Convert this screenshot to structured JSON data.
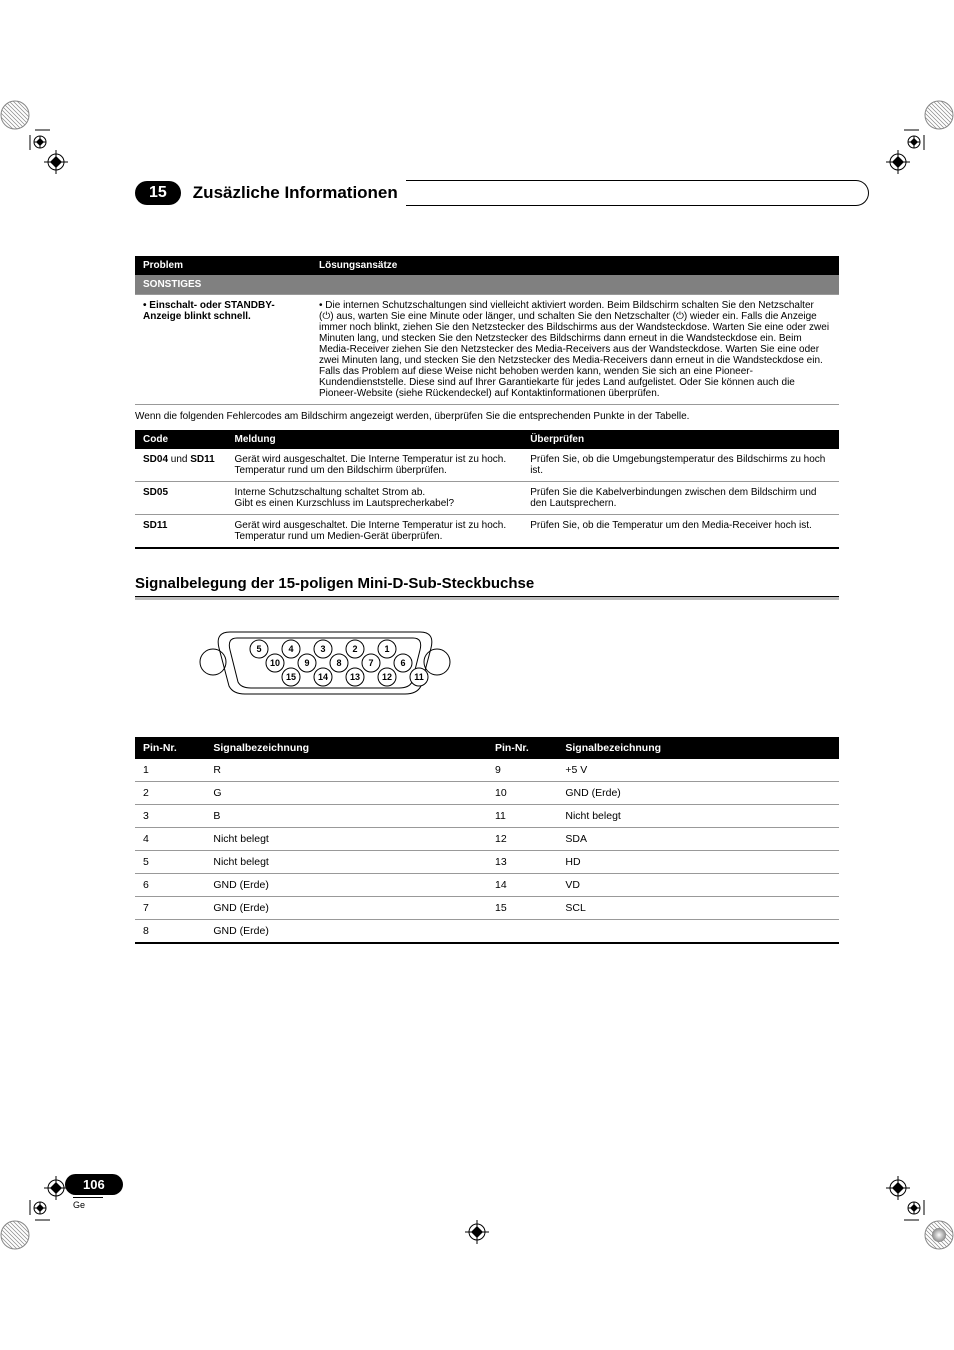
{
  "chapter": {
    "number": "15",
    "title": "Zusäzliche Informationen"
  },
  "table1": {
    "headers": [
      "Problem",
      "Lösungsansätze"
    ],
    "subheader": "SONSTIGES",
    "row": {
      "problem": "• Einschalt- oder STANDBY-Anzeige blinkt schnell.",
      "solution": "• Die internen Schutzschaltungen sind vielleicht aktiviert worden. Beim Bildschirm schalten Sie den Netzschalter (⏻) aus, warten Sie eine Minute oder länger, und schalten Sie den Netzschalter (⏻) wieder ein. Falls die Anzeige immer noch blinkt, ziehen Sie den Netzstecker des Bildschirms aus der Wandsteckdose. Warten Sie eine oder zwei Minuten lang, und stecken Sie den Netzstecker des Bildschirms dann erneut in die Wandsteckdose ein. Beim Media-Receiver ziehen Sie den Netzstecker des Media-Receivers aus der Wandsteckdose. Warten Sie eine oder zwei Minuten lang, und stecken Sie den Netzstecker des Media-Receivers dann erneut in die Wandsteckdose ein. Falls das Problem auf diese Weise nicht behoben werden kann, wenden Sie sich an eine Pioneer-Kundendienststelle. Diese sind auf Ihrer Garantiekarte für jedes Land aufgelistet. Oder Sie können auch die Pioneer-Website (siehe Rückendeckel) auf Kontaktinformationen überprüfen."
    }
  },
  "note": "Wenn die folgenden Fehlercodes am Bildschirm angezeigt werden, überprüfen Sie die entsprechenden Punkte in der Tabelle.",
  "table2": {
    "headers": [
      "Code",
      "Meldung",
      "Überprüfen"
    ],
    "rows": [
      {
        "code_a": "SD04",
        "code_mid": " und ",
        "code_b": "SD11",
        "msg": "Gerät wird ausgeschaltet. Die Interne Temperatur ist zu hoch.\nTemperatur rund um den Bildschirm überprüfen.",
        "check": "Prüfen Sie, ob die Umgebungstemperatur des Bildschirms zu hoch ist."
      },
      {
        "code_a": "SD05",
        "code_mid": "",
        "code_b": "",
        "msg": "Interne Schutzschaltung schaltet Strom ab.\nGibt es einen Kurzschluss im Lautsprecherkabel?",
        "check": "Prüfen Sie die Kabelverbindungen zwischen dem Bildschirm und den Lautsprechern."
      },
      {
        "code_a": "SD11",
        "code_mid": "",
        "code_b": "",
        "msg": "Gerät wird ausgeschaltet. Die Interne Temperatur ist zu hoch.\nTemperatur rund um Medien-Gerät überprüfen.",
        "check": "Prüfen Sie, ob die Temperatur um den Media-Receiver hoch ist."
      }
    ]
  },
  "section2": {
    "title": "Signalbelegung der 15-poligen Mini-D-Sub-Steckbuchse"
  },
  "connector": {
    "pins": [
      [
        5,
        4,
        3,
        2,
        1
      ],
      [
        10,
        9,
        8,
        7,
        6
      ],
      [
        15,
        14,
        13,
        12,
        11
      ]
    ],
    "circle_r": 9,
    "circle_fill": "#fff",
    "circle_stroke": "#000",
    "text_font": 9
  },
  "table3": {
    "headers": [
      "Pin-Nr.",
      "Signalbezeichnung",
      "Pin-Nr.",
      "Signalbezeichnung"
    ],
    "rows": [
      [
        "1",
        "R",
        "9",
        "+5 V"
      ],
      [
        "2",
        "G",
        "10",
        "GND (Erde)"
      ],
      [
        "3",
        "B",
        "11",
        "Nicht belegt"
      ],
      [
        "4",
        "Nicht belegt",
        "12",
        "SDA"
      ],
      [
        "5",
        "Nicht belegt",
        "13",
        "HD"
      ],
      [
        "6",
        "GND (Erde)",
        "14",
        "VD"
      ],
      [
        "7",
        "GND (Erde)",
        "15",
        "SCL"
      ],
      [
        "8",
        "GND (Erde)",
        "",
        ""
      ]
    ]
  },
  "footer": {
    "page": "106",
    "lang": "Ge"
  }
}
